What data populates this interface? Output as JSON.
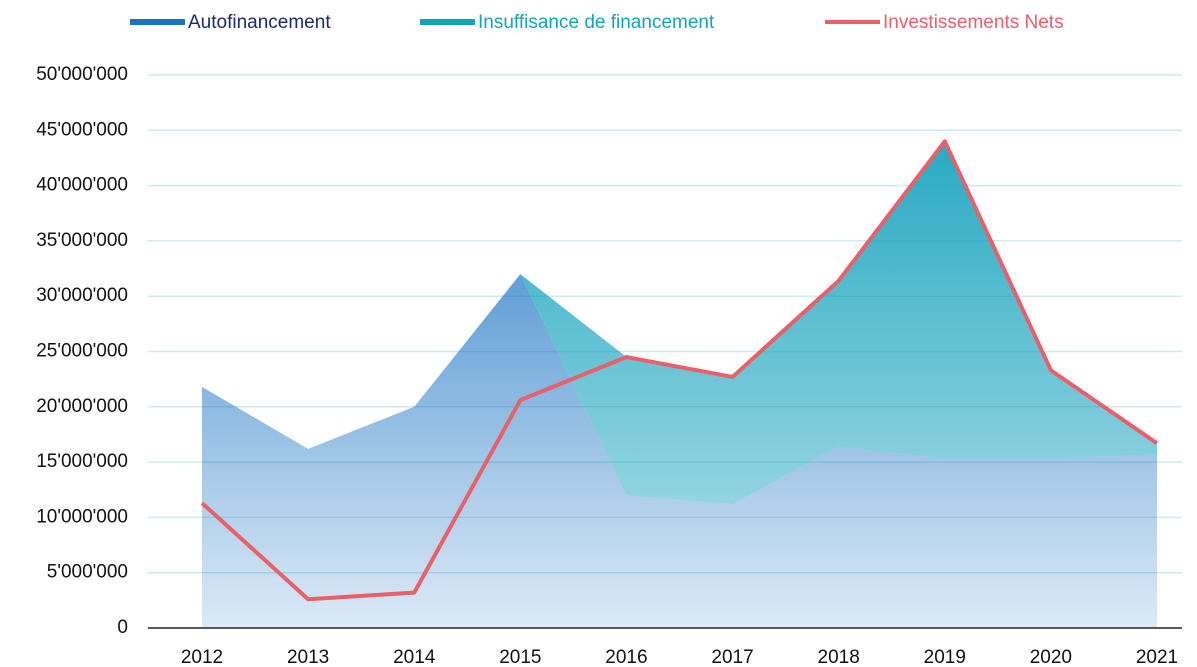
{
  "chart_data": {
    "type": "area",
    "categories": [
      "2012",
      "2013",
      "2014",
      "2015",
      "2016",
      "2017",
      "2018",
      "2019",
      "2020",
      "2021"
    ],
    "series": [
      {
        "name": "Autofinancement",
        "color": "#1a73c4",
        "kind": "area",
        "values": [
          21800000,
          16200000,
          20000000,
          32000000,
          12000000,
          11200000,
          16400000,
          15300000,
          15300000,
          15700000
        ]
      },
      {
        "name": "Insuffisance de financement",
        "color": "#14a2bd",
        "kind": "area",
        "stacked": true,
        "values": [
          0,
          0,
          0,
          0,
          12500000,
          11500000,
          15000000,
          28700000,
          8000000,
          1000000
        ]
      },
      {
        "name": "Investissements Nets",
        "color": "#e8606a",
        "kind": "line",
        "values": [
          11300000,
          2600000,
          3200000,
          20600000,
          24500000,
          22700000,
          31400000,
          44000000,
          23300000,
          16700000
        ]
      }
    ],
    "ylim": [
      0,
      50000000
    ],
    "yticks": [
      0,
      {
        "value": 5000000,
        "label": "5'000'000"
      },
      {
        "value": 10000000,
        "label": "10'000'000"
      },
      {
        "value": 15000000,
        "label": "15'000'000"
      },
      {
        "value": 20000000,
        "label": "20'000'000"
      },
      {
        "value": 25000000,
        "label": "25'000'000"
      },
      {
        "value": 30000000,
        "label": "30'000'000"
      },
      {
        "value": 35000000,
        "label": "35'000'000"
      },
      {
        "value": 40000000,
        "label": "40'000'000"
      },
      {
        "value": 45000000,
        "label": "45'000'000"
      },
      {
        "value": 50000000,
        "label": "50'000'000"
      }
    ],
    "grid": true
  }
}
